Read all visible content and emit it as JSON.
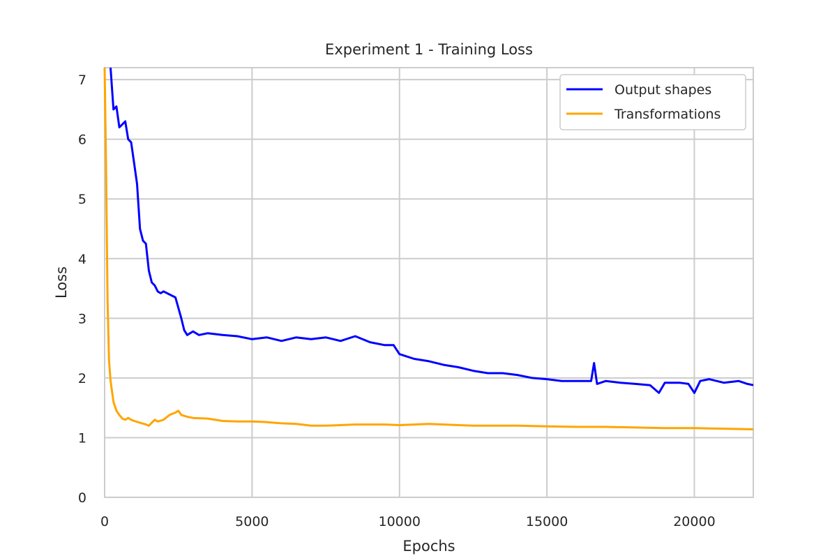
{
  "chart_data": {
    "type": "line",
    "title": "Experiment 1 - Training Loss",
    "xlabel": "Epochs",
    "ylabel": "Loss",
    "xlim": [
      0,
      22000
    ],
    "ylim": [
      0,
      7.2
    ],
    "xticks": [
      0,
      5000,
      10000,
      15000,
      20000
    ],
    "yticks": [
      0,
      1,
      2,
      3,
      4,
      5,
      6,
      7
    ],
    "grid": true,
    "legend_position": "top-right",
    "series": [
      {
        "name": "Output shapes",
        "color": "#0000ff",
        "x": [
          200,
          300,
          400,
          500,
          600,
          700,
          800,
          900,
          1000,
          1100,
          1200,
          1300,
          1400,
          1500,
          1600,
          1700,
          1800,
          1900,
          2000,
          2200,
          2400,
          2600,
          2700,
          2800,
          2900,
          3000,
          3200,
          3500,
          4000,
          4500,
          5000,
          5500,
          6000,
          6500,
          7000,
          7500,
          8000,
          8500,
          9000,
          9500,
          9800,
          10000,
          10500,
          11000,
          11500,
          12000,
          12500,
          13000,
          13500,
          14000,
          14500,
          15000,
          15500,
          16000,
          16500,
          16600,
          16700,
          17000,
          17500,
          18000,
          18500,
          18800,
          19000,
          19500,
          19800,
          20000,
          20200,
          20500,
          21000,
          21500,
          21800,
          22000
        ],
        "y": [
          7.2,
          6.5,
          6.55,
          6.2,
          6.25,
          6.3,
          6.0,
          5.95,
          5.6,
          5.25,
          4.5,
          4.3,
          4.25,
          3.8,
          3.6,
          3.55,
          3.45,
          3.42,
          3.45,
          3.4,
          3.35,
          3.0,
          2.8,
          2.72,
          2.75,
          2.78,
          2.72,
          2.75,
          2.72,
          2.7,
          2.65,
          2.68,
          2.62,
          2.68,
          2.65,
          2.68,
          2.62,
          2.7,
          2.6,
          2.55,
          2.55,
          2.4,
          2.32,
          2.28,
          2.22,
          2.18,
          2.12,
          2.08,
          2.08,
          2.05,
          2.0,
          1.98,
          1.95,
          1.95,
          1.95,
          2.25,
          1.9,
          1.95,
          1.92,
          1.9,
          1.88,
          1.75,
          1.92,
          1.92,
          1.9,
          1.75,
          1.95,
          1.98,
          1.92,
          1.95,
          1.9,
          1.88
        ]
      },
      {
        "name": "Transformations",
        "color": "#ffa500",
        "x": [
          0,
          50,
          100,
          150,
          200,
          300,
          400,
          500,
          600,
          700,
          800,
          900,
          1000,
          1200,
          1400,
          1500,
          1600,
          1700,
          1800,
          2000,
          2200,
          2400,
          2500,
          2600,
          2800,
          3000,
          3500,
          4000,
          4500,
          5000,
          5500,
          6000,
          6500,
          7000,
          7500,
          8000,
          8500,
          9000,
          9500,
          10000,
          10500,
          11000,
          11500,
          12000,
          12500,
          13000,
          14000,
          15000,
          16000,
          17000,
          18000,
          19000,
          20000,
          21000,
          22000
        ],
        "y": [
          7.2,
          5.5,
          3.3,
          2.3,
          1.95,
          1.6,
          1.45,
          1.38,
          1.32,
          1.3,
          1.33,
          1.3,
          1.28,
          1.25,
          1.22,
          1.2,
          1.25,
          1.3,
          1.27,
          1.3,
          1.38,
          1.42,
          1.45,
          1.38,
          1.35,
          1.33,
          1.32,
          1.28,
          1.27,
          1.27,
          1.26,
          1.24,
          1.23,
          1.2,
          1.2,
          1.21,
          1.22,
          1.22,
          1.22,
          1.21,
          1.22,
          1.23,
          1.22,
          1.21,
          1.2,
          1.2,
          1.2,
          1.19,
          1.18,
          1.18,
          1.17,
          1.16,
          1.16,
          1.15,
          1.14
        ]
      }
    ]
  }
}
